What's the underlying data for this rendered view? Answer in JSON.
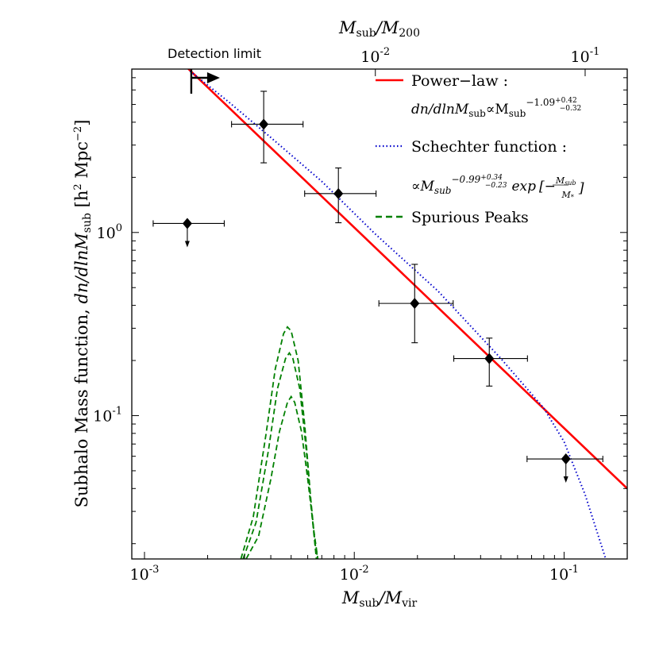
{
  "chart_data": {
    "type": "scatter",
    "title": "",
    "xlabel": "M_sub / M_vir",
    "ylabel": "Subhalo Mass function, dn/dlnM_sub [h² Mpc⁻²]",
    "top_xlabel": "M_sub / M_200",
    "xscale": "log",
    "yscale": "log",
    "xlim": [
      0.00087,
      0.2
    ],
    "ylim": [
      0.0165,
      7.8
    ],
    "x_ticks": [
      {
        "value": 0.001,
        "base": "10",
        "exp": "-3"
      },
      {
        "value": 0.01,
        "base": "10",
        "exp": "-2"
      },
      {
        "value": 0.1,
        "base": "10",
        "exp": "-1"
      }
    ],
    "top_ticks": [
      {
        "value": 0.0126,
        "base": "10",
        "exp": "-2"
      },
      {
        "value": 0.126,
        "base": "10",
        "exp": "-1"
      }
    ],
    "y_ticks": [
      {
        "value": 0.1,
        "base": "10",
        "exp": "-1"
      },
      {
        "value": 1.0,
        "base": "10",
        "exp": "0"
      }
    ],
    "points": [
      {
        "x": 0.0016,
        "y": 1.12,
        "xerr_lo": 0.0011,
        "xerr_hi": 0.0024,
        "upper_limit": true
      },
      {
        "x": 0.0037,
        "y": 3.9,
        "xerr_lo": 0.0026,
        "xerr_hi": 0.0057,
        "yerr_lo": 2.4,
        "yerr_hi": 5.9
      },
      {
        "x": 0.0084,
        "y": 1.63,
        "xerr_lo": 0.0058,
        "xerr_hi": 0.0127,
        "yerr_lo": 1.13,
        "yerr_hi": 2.25
      },
      {
        "x": 0.0194,
        "y": 0.41,
        "xerr_lo": 0.0131,
        "xerr_hi": 0.0296,
        "yerr_lo": 0.25,
        "yerr_hi": 0.67
      },
      {
        "x": 0.044,
        "y": 0.205,
        "xerr_lo": 0.0298,
        "xerr_hi": 0.0669,
        "yerr_lo": 0.145,
        "yerr_hi": 0.265
      },
      {
        "x": 0.102,
        "y": 0.058,
        "xerr_lo": 0.0666,
        "xerr_hi": 0.153,
        "upper_limit": true
      }
    ],
    "series": [
      {
        "name": "Power-law",
        "style": "solid",
        "color": "#ff0000",
        "x": [
          0.00158,
          0.2
        ],
        "y": [
          8.03,
          0.04
        ]
      },
      {
        "name": "Schechter function",
        "style": "dotted",
        "color": "#0000cc",
        "x": [
          0.00165,
          0.0025,
          0.004,
          0.007,
          0.0126,
          0.025,
          0.05,
          0.08,
          0.1,
          0.126,
          0.158
        ],
        "y": [
          7.6,
          5.2,
          3.3,
          1.9,
          0.98,
          0.48,
          0.205,
          0.11,
          0.072,
          0.037,
          0.0165
        ]
      },
      {
        "name": "Spurious Peaks",
        "style": "dashed",
        "color": "#008000",
        "x": [
          0.00288,
          0.0033,
          0.0038,
          0.0042,
          0.0046,
          0.0048,
          0.005,
          0.0054,
          0.0058,
          0.0062,
          0.0065,
          0.0067
        ],
        "y": [
          0.0165,
          0.028,
          0.08,
          0.18,
          0.28,
          0.305,
          0.29,
          0.2,
          0.09,
          0.035,
          0.02,
          0.0165
        ]
      },
      {
        "name": "Spurious Peaks",
        "style": "dashed",
        "color": "#008000",
        "x": [
          0.00295,
          0.0034,
          0.0039,
          0.0043,
          0.0047,
          0.0049,
          0.0051,
          0.0055,
          0.0059,
          0.0063,
          0.0066
        ],
        "y": [
          0.0165,
          0.026,
          0.065,
          0.14,
          0.205,
          0.22,
          0.205,
          0.14,
          0.065,
          0.028,
          0.0165
        ]
      },
      {
        "name": "Spurious Peaks",
        "style": "dashed",
        "color": "#008000",
        "x": [
          0.00305,
          0.0035,
          0.004,
          0.0044,
          0.0048,
          0.005,
          0.0052,
          0.0056,
          0.006,
          0.0064,
          0.0067
        ],
        "y": [
          0.0165,
          0.022,
          0.045,
          0.082,
          0.118,
          0.127,
          0.118,
          0.082,
          0.045,
          0.024,
          0.0165
        ]
      }
    ],
    "detection_limit": {
      "label": "Detection limit",
      "x": 0.0016
    },
    "legend": {
      "position": "top-right",
      "power_law_label": "Power−law :",
      "power_law_eq": "dn/dlnM",
      "power_law_eq_sub": "sub",
      "power_law_prop": "∝M",
      "power_law_prop_sub": "sub",
      "power_law_exp": "−1.09",
      "power_law_exp_hi": "+0.42",
      "power_law_exp_lo": "−0.32",
      "schechter_label": "Schechter function :",
      "schechter_prop": "∝M",
      "schechter_prop_sub": "sub",
      "schechter_exp": "−0.99",
      "schechter_exp_hi": "+0.34",
      "schechter_exp_lo": "−0.23",
      "schechter_exp_word": "exp",
      "schechter_bracket_open": "[−",
      "schechter_frac_num": "M",
      "schechter_frac_num_sub": "sub",
      "schechter_frac_den": "M",
      "schechter_frac_den_sub": "*",
      "schechter_bracket_close": "]",
      "spurious_label": "Spurious Peaks"
    },
    "axis_labels": {
      "bottom_M": "M",
      "bottom_sub": "sub",
      "bottom_slash": "/M",
      "bottom_den_sub": "vir",
      "top_M": "M",
      "top_sub": "sub",
      "top_slash": "/M",
      "top_den_sub": "200",
      "y_main": "Subhalo Mass function, ",
      "y_dn": "dn/dlnM",
      "y_sub": "sub",
      "y_units_open": " [h",
      "y_units_sq": "2",
      "y_units_mpc": " Mpc",
      "y_units_exp": "−2",
      "y_units_close": "]"
    }
  }
}
